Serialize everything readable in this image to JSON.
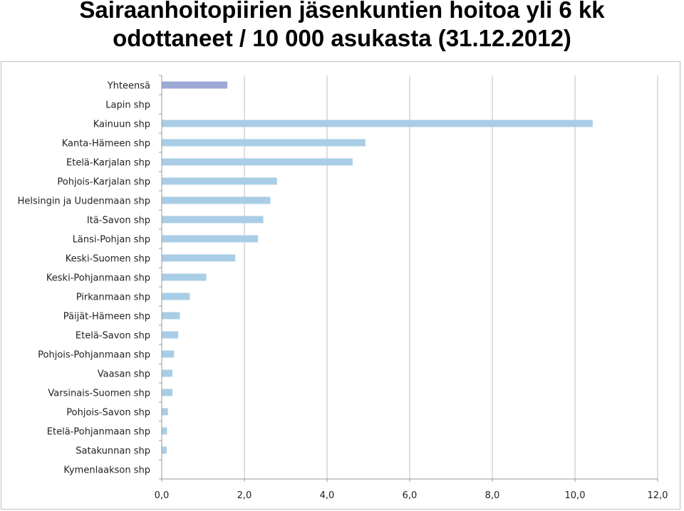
{
  "header": {
    "title_line1": "Sairaanhoitopiirien jäsenkuntien hoitoa yli 6 kk",
    "title_line2": "odottaneet / 10 000 asukasta (31.12.2012)"
  },
  "chart_data": {
    "type": "bar",
    "orientation": "horizontal",
    "categories": [
      "Yhteensä",
      "Lapin shp",
      "Kainuun shp",
      "Kanta-Hämeen shp",
      "Etelä-Karjalan shp",
      "Pohjois-Karjalan shp",
      "Helsingin ja Uudenmaan shp",
      "Itä-Savon shp",
      "Länsi-Pohjan shp",
      "Keski-Suomen shp",
      "Keski-Pohjanmaan shp",
      "Pirkanmaan shp",
      "Päijät-Hämeen shp",
      "Etelä-Savon shp",
      "Pohjois-Pohjanmaan shp",
      "Vaasan shp",
      "Varsinais-Suomen shp",
      "Pohjois-Savon shp",
      "Etelä-Pohjanmaan shp",
      "Satakunnan shp",
      "Kymenlaakson shp"
    ],
    "values": [
      1.58,
      0.0,
      10.42,
      4.92,
      4.61,
      2.78,
      2.62,
      2.45,
      2.32,
      1.77,
      1.07,
      0.67,
      0.43,
      0.39,
      0.29,
      0.25,
      0.25,
      0.14,
      0.12,
      0.11,
      0.0
    ],
    "xlim": [
      0,
      12
    ],
    "xticks": [
      "0,0",
      "2,0",
      "4,0",
      "6,0",
      "8,0",
      "10,0",
      "12,0"
    ],
    "grid": "vertical",
    "colors": {
      "total": "#9eaad6",
      "default": "#a9cde6",
      "grid": "#bfbfbf",
      "axis": "#999999"
    }
  }
}
